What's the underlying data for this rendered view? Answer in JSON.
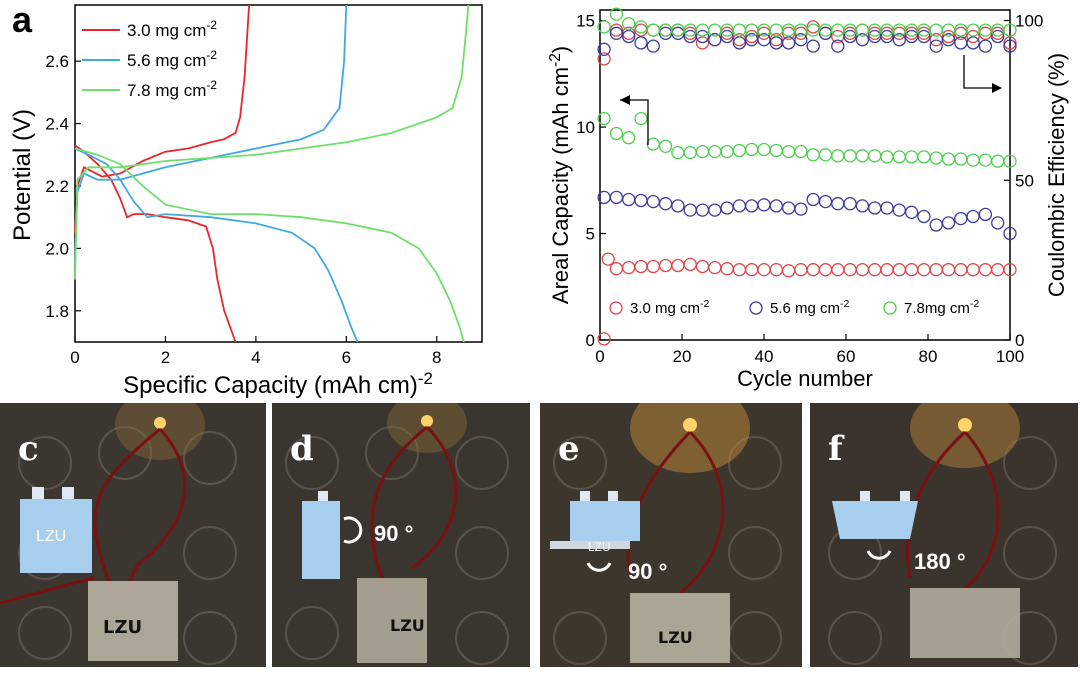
{
  "chart_data": [
    {
      "panel": "a",
      "type": "line",
      "xlabel": "Specific Capacity (mAh cm-2)",
      "ylabel": "Potential (V)",
      "xlim": [
        0,
        9.0
      ],
      "ylim": [
        1.7,
        2.78
      ],
      "xticks": [
        "0",
        "2",
        "4",
        "6",
        "8"
      ],
      "yticks": [
        "1.8",
        "2.0",
        "2.2",
        "2.4",
        "2.6"
      ],
      "legend": {
        "position": "top-left",
        "entries": [
          {
            "main": "3.0 mg cm",
            "sup": "-2",
            "color": "#e8262b"
          },
          {
            "main": "5.6 mg cm",
            "sup": "-2",
            "color": "#3fa9e0"
          },
          {
            "main": "7.8 mg cm",
            "sup": "-2",
            "color": "#6ee06a"
          }
        ]
      },
      "series": [
        {
          "name": "3.0 mg cm-2 discharge",
          "color": "#e8262b",
          "x": [
            0,
            0.2,
            0.5,
            0.8,
            1.0,
            1.15,
            1.3,
            1.6,
            2.0,
            2.5,
            2.9,
            3.05,
            3.15,
            3.3,
            3.45,
            3.55
          ],
          "y": [
            2.33,
            2.31,
            2.27,
            2.22,
            2.16,
            2.1,
            2.11,
            2.11,
            2.1,
            2.09,
            2.07,
            2.0,
            1.9,
            1.8,
            1.74,
            1.7
          ]
        },
        {
          "name": "3.0 mg cm-2 charge",
          "color": "#e8262b",
          "x": [
            0,
            0.05,
            0.2,
            0.6,
            1.0,
            1.5,
            2.0,
            2.5,
            3.0,
            3.3,
            3.55,
            3.65,
            3.75,
            3.85
          ],
          "y": [
            2.05,
            2.2,
            2.26,
            2.23,
            2.24,
            2.28,
            2.31,
            2.32,
            2.34,
            2.35,
            2.37,
            2.42,
            2.55,
            2.78
          ]
        },
        {
          "name": "5.6 mg cm-2 discharge",
          "color": "#3fa9e0",
          "x": [
            0,
            0.3,
            0.7,
            1.0,
            1.3,
            1.6,
            2.0,
            3.0,
            4.0,
            4.8,
            5.3,
            5.6,
            5.9,
            6.1,
            6.25
          ],
          "y": [
            2.32,
            2.3,
            2.27,
            2.22,
            2.15,
            2.1,
            2.11,
            2.1,
            2.08,
            2.05,
            2.0,
            1.93,
            1.83,
            1.75,
            1.7
          ]
        },
        {
          "name": "5.6 mg cm-2 charge",
          "color": "#3fa9e0",
          "x": [
            0,
            0.05,
            0.2,
            0.5,
            1.0,
            2.0,
            3.0,
            4.0,
            5.0,
            5.5,
            5.85,
            5.95,
            6.0
          ],
          "y": [
            1.95,
            2.18,
            2.24,
            2.22,
            2.22,
            2.26,
            2.29,
            2.32,
            2.35,
            2.38,
            2.45,
            2.6,
            2.78
          ]
        },
        {
          "name": "7.8 mg cm-2 discharge",
          "color": "#6ee06a",
          "x": [
            0,
            0.5,
            1.0,
            1.5,
            2.0,
            3.0,
            4.0,
            5.0,
            6.0,
            7.0,
            7.6,
            8.0,
            8.3,
            8.5,
            8.6
          ],
          "y": [
            2.32,
            2.3,
            2.27,
            2.2,
            2.14,
            2.11,
            2.11,
            2.1,
            2.08,
            2.05,
            2.0,
            1.92,
            1.83,
            1.75,
            1.7
          ]
        },
        {
          "name": "7.8 mg cm-2 charge",
          "color": "#6ee06a",
          "x": [
            0,
            0.05,
            0.3,
            1.0,
            2.0,
            3.0,
            4.0,
            5.0,
            6.0,
            7.0,
            8.0,
            8.35,
            8.55,
            8.65,
            8.7
          ],
          "y": [
            1.9,
            2.22,
            2.26,
            2.26,
            2.28,
            2.29,
            2.3,
            2.32,
            2.34,
            2.37,
            2.42,
            2.45,
            2.55,
            2.7,
            2.78
          ]
        }
      ]
    },
    {
      "panel": "b",
      "type": "scatter",
      "xlabel": "Cycle number",
      "ylabel_left": "Areal Capacity (mAh cm-2)",
      "ylabel_right": "Coulombic Efficiency (%)",
      "xlim": [
        0,
        100
      ],
      "ylim_left": [
        0,
        15.5
      ],
      "ylim_right": [
        0,
        103.3
      ],
      "xticks": [
        "0",
        "20",
        "40",
        "60",
        "80",
        "100"
      ],
      "yticks_left": [
        "0",
        "5",
        "10",
        "15"
      ],
      "yticks_right": [
        "0",
        "50",
        "100"
      ],
      "legend": {
        "position": "bottom",
        "entries": [
          {
            "main": "3.0 mg cm",
            "sup": "-2",
            "color": "#e0464a"
          },
          {
            "main": "5.6 mg cm",
            "sup": "-2",
            "color": "#3d3d9e"
          },
          {
            "main": "7.8mg cm",
            "sup": "-2",
            "color": "#4cd04c"
          }
        ]
      },
      "annotations": [
        {
          "direction": "left",
          "axis": "Areal Capacity"
        },
        {
          "direction": "right",
          "axis": "Coulombic Efficiency"
        }
      ],
      "series": [
        {
          "name": "3.0 mg cm-2 capacity",
          "axis": "left",
          "color": "#e0464a",
          "x": [
            1,
            2,
            4,
            7,
            10,
            13,
            16,
            19,
            22,
            25,
            28,
            31,
            34,
            37,
            40,
            43,
            46,
            49,
            52,
            55,
            58,
            61,
            64,
            67,
            70,
            73,
            76,
            79,
            82,
            85,
            88,
            91,
            94,
            97,
            100
          ],
          "y": [
            0.05,
            3.8,
            3.35,
            3.4,
            3.45,
            3.45,
            3.5,
            3.5,
            3.55,
            3.45,
            3.4,
            3.35,
            3.3,
            3.3,
            3.3,
            3.3,
            3.25,
            3.3,
            3.3,
            3.3,
            3.3,
            3.3,
            3.3,
            3.3,
            3.3,
            3.3,
            3.3,
            3.3,
            3.3,
            3.3,
            3.3,
            3.3,
            3.3,
            3.3,
            3.3
          ]
        },
        {
          "name": "5.6 mg cm-2 capacity",
          "axis": "left",
          "color": "#3d3d9e",
          "x": [
            1,
            4,
            7,
            10,
            13,
            16,
            19,
            22,
            25,
            28,
            31,
            34,
            37,
            40,
            43,
            46,
            49,
            52,
            55,
            58,
            61,
            64,
            67,
            70,
            73,
            76,
            79,
            82,
            85,
            88,
            91,
            94,
            97,
            100
          ],
          "y": [
            6.7,
            6.7,
            6.6,
            6.55,
            6.5,
            6.4,
            6.3,
            6.1,
            6.1,
            6.1,
            6.2,
            6.3,
            6.3,
            6.35,
            6.3,
            6.2,
            6.15,
            6.6,
            6.5,
            6.4,
            6.4,
            6.3,
            6.2,
            6.2,
            6.1,
            6.0,
            5.8,
            5.4,
            5.5,
            5.7,
            5.8,
            5.9,
            5.5,
            5.0
          ]
        },
        {
          "name": "7.8 mg cm-2 capacity",
          "axis": "left",
          "color": "#4cd04c",
          "x": [
            1,
            4,
            7,
            10,
            13,
            16,
            19,
            22,
            25,
            28,
            31,
            34,
            37,
            40,
            43,
            46,
            49,
            52,
            55,
            58,
            61,
            64,
            67,
            70,
            73,
            76,
            79,
            82,
            85,
            88,
            91,
            94,
            97,
            100
          ],
          "y": [
            10.4,
            9.7,
            9.5,
            10.4,
            9.2,
            9.1,
            8.8,
            8.8,
            8.85,
            8.85,
            8.85,
            8.9,
            8.95,
            8.95,
            8.9,
            8.85,
            8.85,
            8.7,
            8.7,
            8.65,
            8.65,
            8.65,
            8.65,
            8.6,
            8.6,
            8.6,
            8.6,
            8.55,
            8.5,
            8.5,
            8.45,
            8.45,
            8.4,
            8.4
          ]
        },
        {
          "name": "3.0 mg cm-2 CE",
          "axis": "right",
          "color": "#e0464a",
          "x": [
            1,
            4,
            7,
            10,
            13,
            16,
            19,
            22,
            25,
            28,
            31,
            34,
            37,
            40,
            43,
            46,
            49,
            52,
            55,
            58,
            61,
            64,
            67,
            70,
            73,
            76,
            79,
            82,
            85,
            88,
            91,
            94,
            97,
            100
          ],
          "y": [
            88,
            97,
            96,
            97,
            97,
            97,
            97,
            96,
            93,
            94,
            96,
            94,
            95,
            96,
            94,
            96,
            96,
            98,
            96,
            95,
            96,
            97,
            96,
            96,
            96,
            96,
            96,
            94,
            95,
            96,
            95,
            96,
            96,
            93
          ]
        },
        {
          "name": "5.6 mg cm-2 CE",
          "axis": "right",
          "color": "#3d3d9e",
          "x": [
            1,
            4,
            7,
            10,
            13,
            16,
            19,
            22,
            25,
            28,
            31,
            34,
            37,
            40,
            43,
            46,
            49,
            52,
            55,
            58,
            61,
            64,
            67,
            70,
            73,
            76,
            79,
            82,
            85,
            88,
            91,
            94,
            97,
            100
          ],
          "y": [
            91,
            96,
            95,
            93,
            92,
            96,
            96,
            95,
            95,
            94,
            95,
            93,
            94,
            94,
            93,
            93,
            94,
            92,
            96,
            92,
            95,
            94,
            95,
            95,
            94,
            95,
            95,
            92,
            94,
            93,
            93,
            92,
            95,
            92
          ]
        },
        {
          "name": "7.8 mg cm-2 CE",
          "axis": "right",
          "color": "#4cd04c",
          "x": [
            1,
            4,
            7,
            10,
            13,
            16,
            19,
            22,
            25,
            28,
            31,
            34,
            37,
            40,
            43,
            46,
            49,
            52,
            55,
            58,
            61,
            64,
            67,
            70,
            73,
            76,
            79,
            82,
            85,
            88,
            91,
            94,
            97,
            100
          ],
          "y": [
            98,
            102,
            99,
            98,
            97,
            97,
            97,
            97,
            97,
            97,
            97,
            97,
            97,
            97,
            97,
            97,
            97,
            97,
            97,
            97,
            97,
            97,
            97,
            97,
            97,
            97,
            97,
            97,
            97,
            97,
            97,
            97,
            97,
            97
          ]
        }
      ]
    }
  ],
  "panels": {
    "a": "a",
    "b": "b",
    "c": "c",
    "d": "d",
    "e": "e",
    "f": "f"
  },
  "photos": {
    "cell_label": "LZU",
    "handwritten": "LZU",
    "d_rotation": "90 °",
    "e_rotation": "90 °",
    "f_rotation": "180 °"
  },
  "colors": {
    "cell_fill": "#a9cfef",
    "led": "#ffd36b",
    "wire": "#7a1010"
  }
}
